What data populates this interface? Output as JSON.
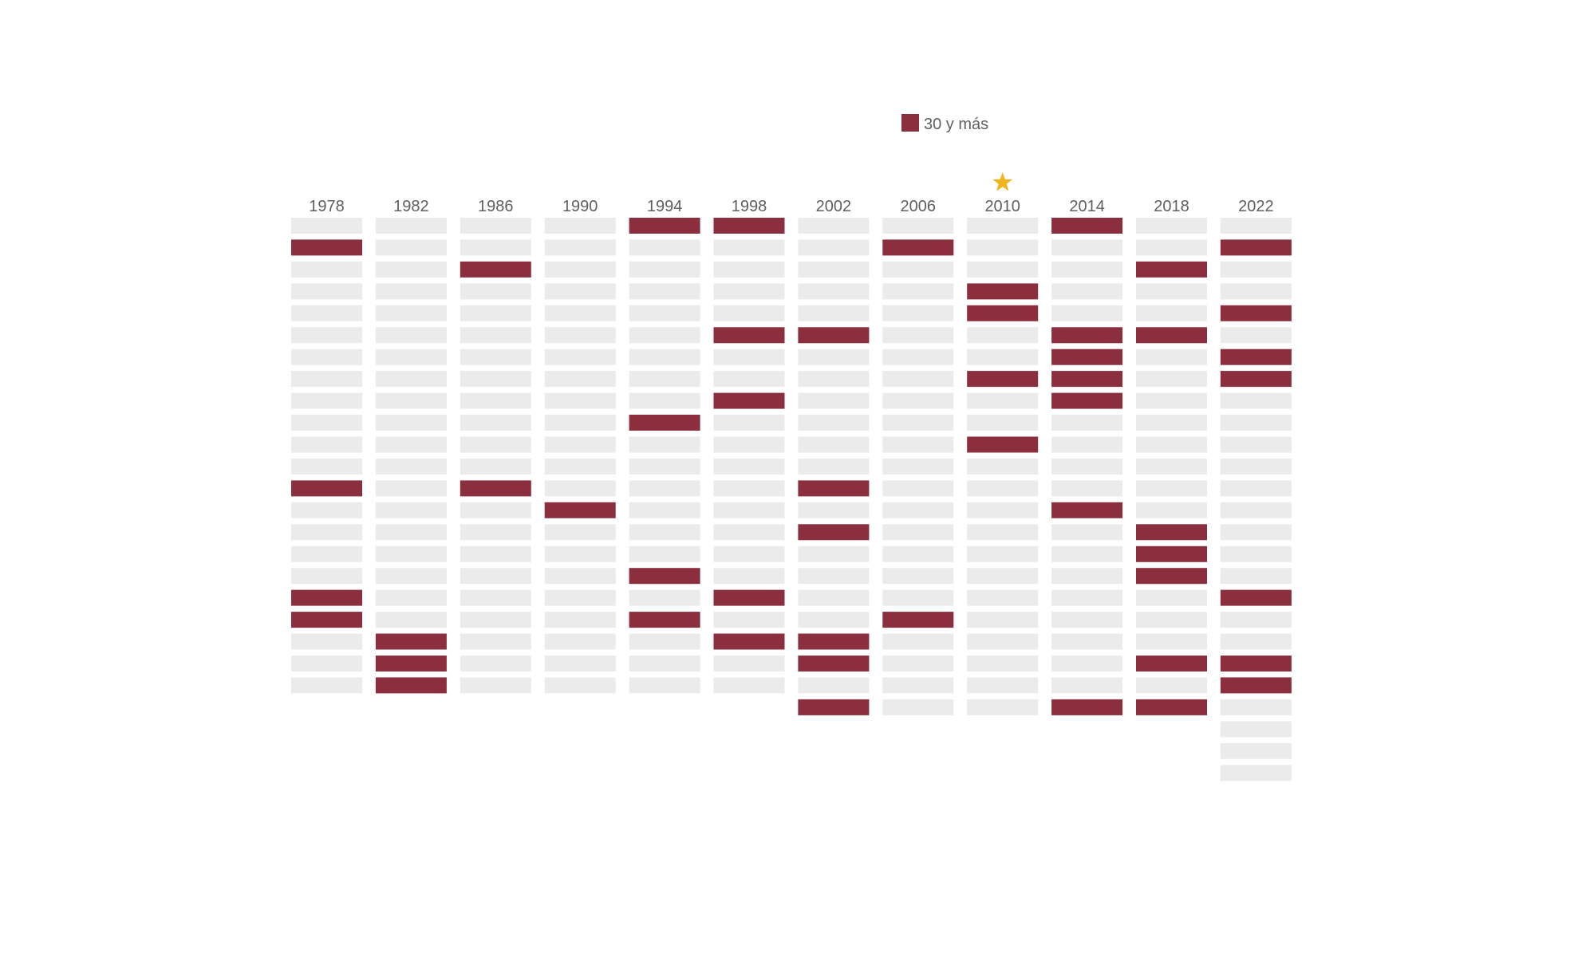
{
  "chart_data": {
    "type": "waffle",
    "title": "",
    "legend": [
      {
        "label": "30 y más",
        "color": "#8b2e3d"
      }
    ],
    "colors": {
      "highlight": "#8b2e3d",
      "empty": "#ebebeb",
      "star": "#f0b41c",
      "text": "#5f5f5f"
    },
    "starred_year": "2010",
    "star_icon": "star-icon",
    "columns": [
      {
        "year": "1978",
        "slots": 22,
        "highlighted": [
          2,
          13,
          18,
          19
        ]
      },
      {
        "year": "1982",
        "slots": 22,
        "highlighted": [
          20,
          21,
          22
        ]
      },
      {
        "year": "1986",
        "slots": 22,
        "highlighted": [
          3,
          13
        ]
      },
      {
        "year": "1990",
        "slots": 22,
        "highlighted": [
          14
        ]
      },
      {
        "year": "1994",
        "slots": 22,
        "highlighted": [
          1,
          10,
          17,
          19
        ]
      },
      {
        "year": "1998",
        "slots": 22,
        "highlighted": [
          1,
          6,
          9,
          18,
          20
        ]
      },
      {
        "year": "2002",
        "slots": 23,
        "highlighted": [
          6,
          13,
          15,
          20,
          21,
          23
        ]
      },
      {
        "year": "2006",
        "slots": 23,
        "highlighted": [
          2,
          19
        ]
      },
      {
        "year": "2010",
        "slots": 23,
        "highlighted": [
          4,
          5,
          8,
          11
        ]
      },
      {
        "year": "2014",
        "slots": 23,
        "highlighted": [
          1,
          6,
          7,
          8,
          9,
          14,
          23
        ]
      },
      {
        "year": "2018",
        "slots": 23,
        "highlighted": [
          3,
          6,
          15,
          16,
          17,
          21,
          23
        ]
      },
      {
        "year": "2022",
        "slots": 26,
        "highlighted": [
          2,
          5,
          7,
          8,
          18,
          21,
          22
        ]
      }
    ]
  }
}
